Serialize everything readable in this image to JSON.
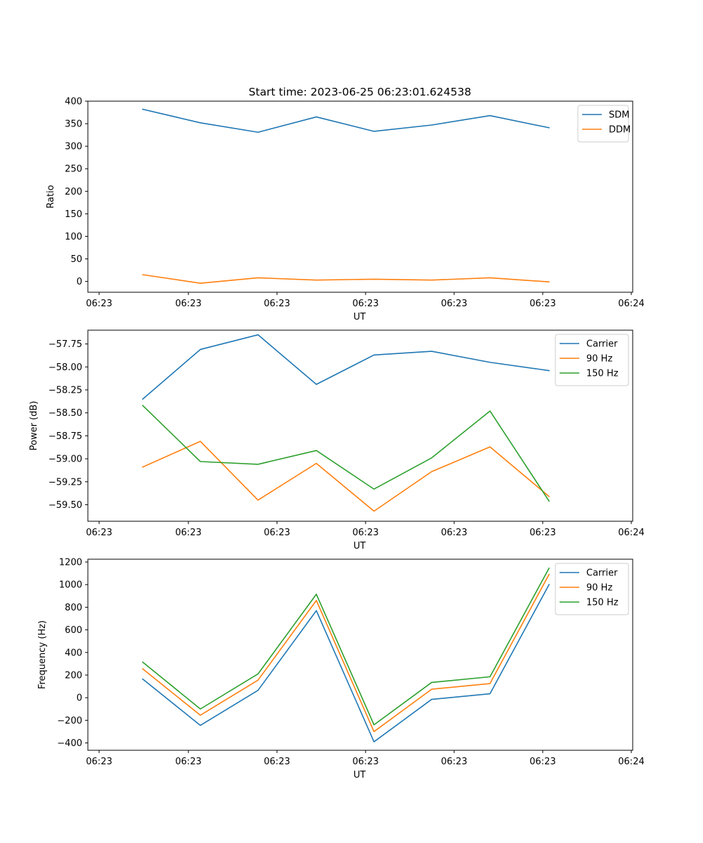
{
  "chart_data": [
    {
      "type": "line",
      "title": "Start time: 2023-06-25 06:23:01.624538",
      "xlabel": "UT",
      "ylabel": "Ratio",
      "xticks": [
        "06:23",
        "06:23",
        "06:23",
        "06:23",
        "06:23",
        "06:23",
        "06:24"
      ],
      "yticks": [
        0,
        50,
        100,
        150,
        200,
        250,
        300,
        350,
        400
      ],
      "ylim": [
        -24,
        400
      ],
      "legend_position": "upper-right",
      "series": [
        {
          "name": "SDM",
          "color": "#1f77b4",
          "values": [
            382,
            352,
            331,
            365,
            333,
            347,
            368,
            341
          ]
        },
        {
          "name": "DDM",
          "color": "#ff7f0e",
          "values": [
            15,
            -4,
            8,
            3,
            5,
            3,
            8,
            -1
          ]
        }
      ]
    },
    {
      "type": "line",
      "title": "",
      "xlabel": "UT",
      "ylabel": "Power (dB)",
      "xticks": [
        "06:23",
        "06:23",
        "06:23",
        "06:23",
        "06:23",
        "06:23",
        "06:24"
      ],
      "yticks": [
        -59.5,
        -59.25,
        -59.0,
        -58.75,
        -58.5,
        -58.25,
        -58.0,
        -57.75
      ],
      "ytick_labels": [
        "−59.50",
        "−59.25",
        "−59.00",
        "−58.75",
        "−58.50",
        "−58.25",
        "−58.00",
        "−57.75"
      ],
      "ylim": [
        -59.68,
        -57.6
      ],
      "legend_position": "upper-right",
      "series": [
        {
          "name": "Carrier",
          "color": "#1f77b4",
          "values": [
            -58.35,
            -57.81,
            -57.65,
            -58.19,
            -57.87,
            -57.83,
            -57.95,
            -58.04
          ]
        },
        {
          "name": "90 Hz",
          "color": "#ff7f0e",
          "values": [
            -59.09,
            -58.81,
            -59.45,
            -59.05,
            -59.57,
            -59.14,
            -58.87,
            -59.41
          ]
        },
        {
          "name": "150 Hz",
          "color": "#2ca02c",
          "values": [
            -58.42,
            -59.03,
            -59.06,
            -58.91,
            -59.33,
            -58.99,
            -58.48,
            -59.46
          ]
        }
      ]
    },
    {
      "type": "line",
      "title": "",
      "xlabel": "UT",
      "ylabel": "Frequency (Hz)",
      "xticks": [
        "06:23",
        "06:23",
        "06:23",
        "06:23",
        "06:23",
        "06:23",
        "06:24"
      ],
      "yticks": [
        -400,
        -200,
        0,
        200,
        400,
        600,
        800,
        1000,
        1200
      ],
      "ytick_labels": [
        "−400",
        "−200",
        "0",
        "200",
        "400",
        "600",
        "800",
        "1000",
        "1200"
      ],
      "ylim": [
        -465,
        1225
      ],
      "legend_position": "upper-right",
      "series": [
        {
          "name": "Carrier",
          "color": "#1f77b4",
          "values": [
            165,
            -245,
            65,
            770,
            -390,
            -15,
            35,
            1000
          ]
        },
        {
          "name": "90 Hz",
          "color": "#ff7f0e",
          "values": [
            255,
            -155,
            155,
            860,
            -300,
            75,
            125,
            1090
          ]
        },
        {
          "name": "150 Hz",
          "color": "#2ca02c",
          "values": [
            315,
            -100,
            210,
            915,
            -240,
            135,
            185,
            1145
          ]
        }
      ]
    }
  ]
}
